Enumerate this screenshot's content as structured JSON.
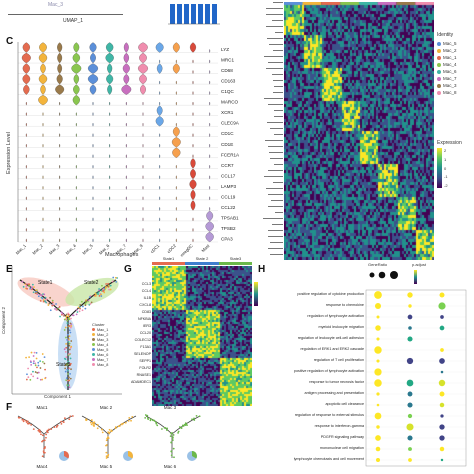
{
  "panels": {
    "c": "C",
    "e": "E",
    "f": "F",
    "g": "G",
    "h": "H"
  },
  "top_left": {
    "umap_label": "UMAP_1",
    "cluster_label": "Mac_3"
  },
  "violin": {
    "ylabel": "Expression Level",
    "xlabel": "Macrophages",
    "genes": [
      "LYZ",
      "MRC1",
      "CD68",
      "CD163",
      "C1QC",
      "MARCO",
      "XCR1",
      "CLEC9A",
      "CD1C",
      "CD1E",
      "FCER1A",
      "CCR7",
      "CCL17",
      "LAMP3",
      "CCL19",
      "CCL22",
      "TPSAB1",
      "TPSB2",
      "CPA3"
    ],
    "groups": [
      "Mac_1",
      "Mac_2",
      "Mac_3",
      "Mac_4",
      "Mac_5",
      "Mac_6",
      "Mac_7",
      "Mac_8",
      "cDC1",
      "cDC2",
      "mregDC",
      "Mast"
    ]
  },
  "heatmap_legend": {
    "identity_title": "Identity",
    "identity_items": [
      {
        "label": "Mac_5",
        "color": "#5b8fd9"
      },
      {
        "label": "Mac_2",
        "color": "#f3b43c"
      },
      {
        "label": "Mac_1",
        "color": "#e46b4f"
      },
      {
        "label": "Mac_4",
        "color": "#8ac64f"
      },
      {
        "label": "Mac_6",
        "color": "#3fb6a6"
      },
      {
        "label": "Mac_7",
        "color": "#c86fbf"
      },
      {
        "label": "Mac_3",
        "color": "#9a7a4a"
      },
      {
        "label": "Mac_8",
        "color": "#f08dae"
      }
    ],
    "expression_title": "Expression",
    "expression_ticks": [
      "2",
      "1",
      "0",
      "-1",
      "-2"
    ]
  },
  "trajectory": {
    "state_labels": [
      "State1",
      "State2",
      "State3"
    ],
    "xlabel": "Component 1",
    "ylabel": "Component 2",
    "cluster_title": "Cluster",
    "clusters": [
      "Mac_1",
      "Mac_2",
      "Mac_3",
      "Mac_4",
      "Mac_5",
      "Mac_6",
      "Mac_7",
      "Mac_8"
    ]
  },
  "pseudotime": {
    "titles": [
      "Mac1",
      "Mac 2",
      "Mac 3"
    ],
    "footer": [
      "Mac4",
      "Mac 5",
      "Mac 6"
    ]
  },
  "g_panel": {
    "states": [
      "State1",
      "State 2",
      "State3"
    ],
    "genes_left": [
      "CCL3",
      "CCL4",
      "IL1B",
      "CXCL8",
      "CD83",
      "NFKBIA",
      "IER3",
      "CCL20"
    ],
    "genes_right": [
      "COLEC12",
      "F13A1",
      "SELENOP",
      "SEPP1",
      "FOLR2",
      "RNASE1",
      "ADAMDEC1"
    ]
  },
  "dotplot": {
    "legend_count": "GeneRatio",
    "legend_p": "p.adjust",
    "terms": [
      "positive regulation of cytokine production",
      "response to chemokine",
      "regulation of lymphocyte activation",
      "myeloid leukocyte migration",
      "regulation of leukocyte cell-cell adhesion",
      "regulation of ERK1 and ERK2 cascade",
      "regulation of T cell proliferation",
      "positive regulation of lymphocyte activation",
      "response to tumor necrosis factor",
      "antigen processing and presentation",
      "apoptotic cell clearance",
      "regulation of response to external stimulus",
      "response to interferon-gamma",
      "PDGFR signaling pathway",
      "mononuclear cell migration",
      "lymphocyte chemotaxis and cell movement"
    ],
    "columns": [
      "State1",
      "State2",
      "State3"
    ]
  }
}
